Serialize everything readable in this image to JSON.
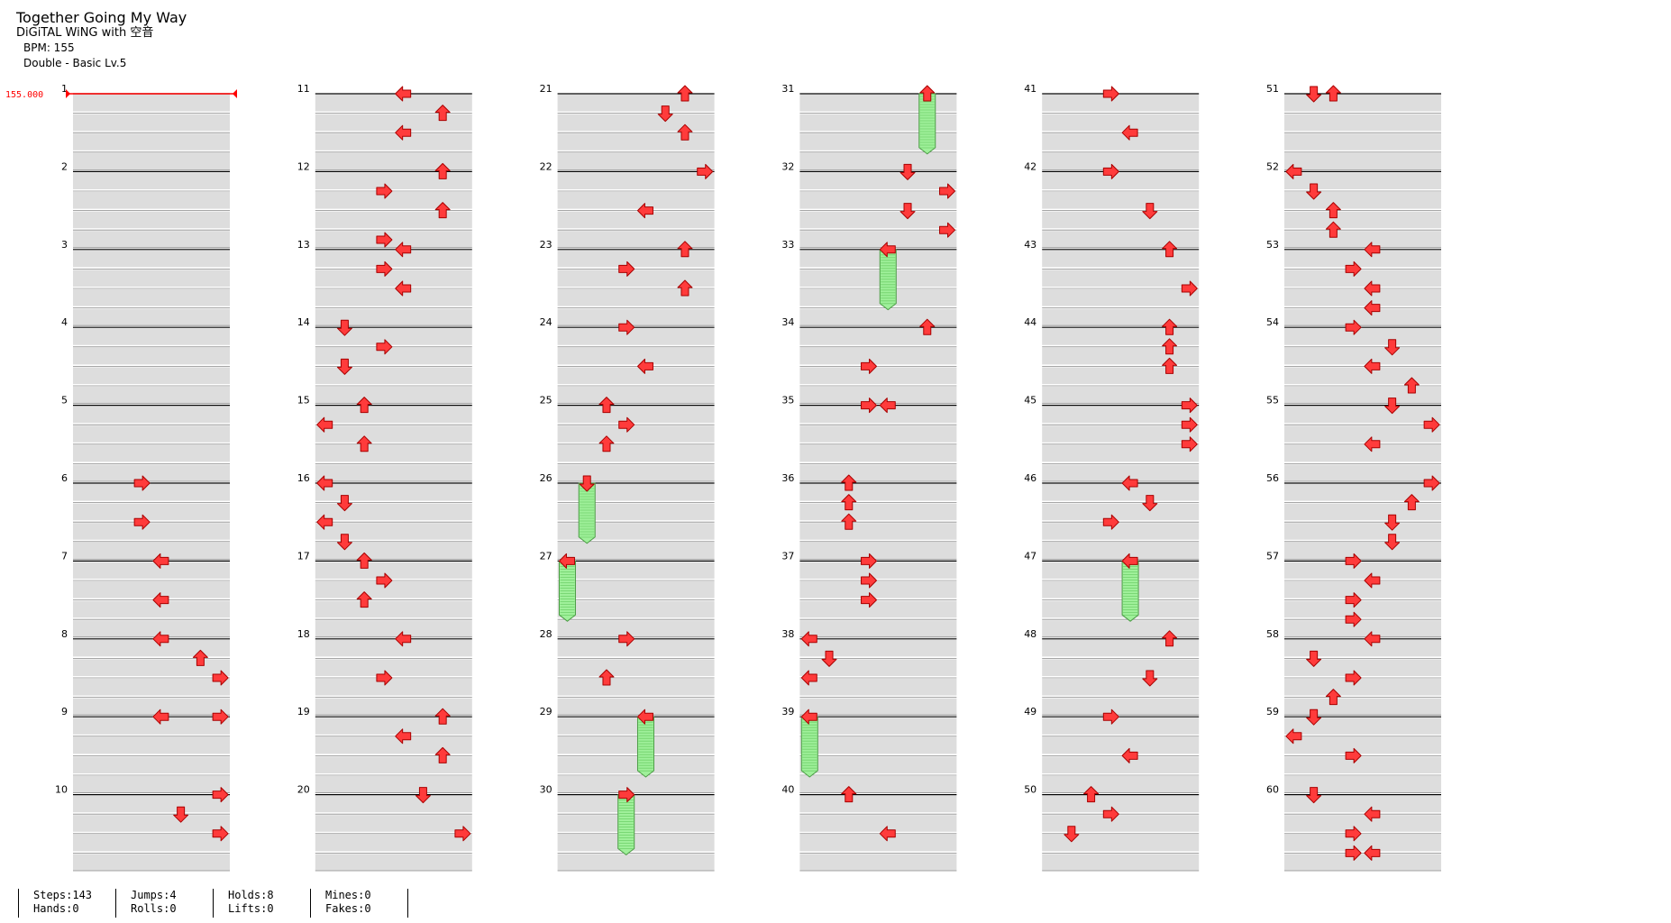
{
  "song": {
    "title": "Together Going My Way",
    "artist": "DiGiTAL WiNG with 空音",
    "bpm_label": "BPM: 155",
    "difficulty": "Double - Basic Lv.5"
  },
  "bpm_marker": "155.000",
  "colors": {
    "arrow_fill": "#ff3b3b",
    "arrow_stroke": "#a80000",
    "hold_fill": "#9ff09a",
    "hold_stroke": "#4c9c46",
    "band_fill": "#dddddd",
    "beat_line": "#000000",
    "bpm_color": "#ff0000"
  },
  "measure_count": 60,
  "measures": [
    {
      "n": "1",
      "notes": []
    },
    {
      "n": "2",
      "notes": []
    },
    {
      "n": "3",
      "notes": []
    },
    {
      "n": "4",
      "notes": []
    },
    {
      "n": "5",
      "notes": []
    },
    {
      "n": "6",
      "notes": [
        {
          "b": 0,
          "l": 3,
          "d": "R"
        },
        {
          "b": 2,
          "l": 3,
          "d": "R"
        }
      ]
    },
    {
      "n": "7",
      "notes": [
        {
          "b": 0,
          "l": 4,
          "d": "L"
        },
        {
          "b": 2,
          "l": 4,
          "d": "L"
        }
      ]
    },
    {
      "n": "8",
      "notes": [
        {
          "b": 0,
          "l": 4,
          "d": "L"
        },
        {
          "b": 1,
          "l": 6,
          "d": "U"
        },
        {
          "b": 2,
          "l": 7,
          "d": "R"
        }
      ]
    },
    {
      "n": "9",
      "notes": [
        {
          "b": 0,
          "l": 4,
          "d": "L"
        },
        {
          "b": 0,
          "l": 7,
          "d": "R"
        }
      ]
    },
    {
      "n": "10",
      "notes": [
        {
          "b": 0,
          "l": 7,
          "d": "R"
        },
        {
          "b": 1,
          "l": 5,
          "d": "D"
        },
        {
          "b": 2,
          "l": 7,
          "d": "R"
        }
      ]
    },
    {
      "n": "11",
      "notes": [
        {
          "b": 0,
          "l": 4,
          "d": "L"
        },
        {
          "b": 1,
          "l": 6,
          "d": "U"
        },
        {
          "b": 2,
          "l": 4,
          "d": "L"
        }
      ]
    },
    {
      "n": "12",
      "notes": [
        {
          "b": 0,
          "l": 6,
          "d": "U"
        },
        {
          "b": 1,
          "l": 3,
          "d": "R"
        },
        {
          "b": 2,
          "l": 6,
          "d": "U"
        }
      ]
    },
    {
      "n": "13",
      "notes": [
        {
          "b": -0.5,
          "l": 3,
          "d": "R"
        },
        {
          "b": 0,
          "l": 4,
          "d": "L"
        },
        {
          "b": 1,
          "l": 3,
          "d": "R"
        },
        {
          "b": 2,
          "l": 4,
          "d": "L"
        }
      ]
    },
    {
      "n": "14",
      "notes": [
        {
          "b": 0,
          "l": 1,
          "d": "D"
        },
        {
          "b": 1,
          "l": 3,
          "d": "R"
        },
        {
          "b": 2,
          "l": 1,
          "d": "D"
        }
      ]
    },
    {
      "n": "15",
      "notes": [
        {
          "b": 0,
          "l": 2,
          "d": "U"
        },
        {
          "b": 1,
          "l": 0,
          "d": "L"
        },
        {
          "b": 2,
          "l": 2,
          "d": "U"
        }
      ]
    },
    {
      "n": "16",
      "notes": [
        {
          "b": 0,
          "l": 0,
          "d": "L"
        },
        {
          "b": 1,
          "l": 1,
          "d": "D"
        },
        {
          "b": 2,
          "l": 0,
          "d": "L"
        },
        {
          "b": 3,
          "l": 1,
          "d": "D"
        }
      ]
    },
    {
      "n": "17",
      "notes": [
        {
          "b": 0,
          "l": 2,
          "d": "U"
        },
        {
          "b": 1,
          "l": 3,
          "d": "R"
        },
        {
          "b": 2,
          "l": 2,
          "d": "U"
        }
      ]
    },
    {
      "n": "18",
      "notes": [
        {
          "b": 0,
          "l": 4,
          "d": "L"
        },
        {
          "b": 2,
          "l": 3,
          "d": "R"
        }
      ]
    },
    {
      "n": "19",
      "notes": [
        {
          "b": 0,
          "l": 6,
          "d": "U"
        },
        {
          "b": 1,
          "l": 4,
          "d": "L"
        },
        {
          "b": 2,
          "l": 6,
          "d": "U"
        }
      ]
    },
    {
      "n": "20",
      "notes": [
        {
          "b": 0,
          "l": 5,
          "d": "D"
        },
        {
          "b": 2,
          "l": 7,
          "d": "R"
        }
      ]
    },
    {
      "n": "21",
      "notes": [
        {
          "b": 0,
          "l": 6,
          "d": "U"
        },
        {
          "b": 1,
          "l": 5,
          "d": "D"
        },
        {
          "b": 2,
          "l": 6,
          "d": "U"
        }
      ]
    },
    {
      "n": "22",
      "notes": [
        {
          "b": 0,
          "l": 7,
          "d": "R"
        },
        {
          "b": 2,
          "l": 4,
          "d": "L"
        }
      ]
    },
    {
      "n": "23",
      "notes": [
        {
          "b": 0,
          "l": 6,
          "d": "U"
        },
        {
          "b": 1,
          "l": 3,
          "d": "R"
        },
        {
          "b": 2,
          "l": 6,
          "d": "U"
        }
      ]
    },
    {
      "n": "24",
      "notes": [
        {
          "b": 0,
          "l": 3,
          "d": "R"
        },
        {
          "b": 2,
          "l": 4,
          "d": "L"
        }
      ]
    },
    {
      "n": "25",
      "notes": [
        {
          "b": 0,
          "l": 2,
          "d": "U"
        },
        {
          "b": 1,
          "l": 3,
          "d": "R"
        },
        {
          "b": 2,
          "l": 2,
          "d": "U"
        }
      ]
    },
    {
      "n": "26",
      "notes": [
        {
          "b": 0,
          "l": 1,
          "d": "D",
          "hold": 3
        }
      ]
    },
    {
      "n": "27",
      "notes": [
        {
          "b": 0,
          "l": 0,
          "d": "L",
          "hold": 3
        }
      ]
    },
    {
      "n": "28",
      "notes": [
        {
          "b": 0,
          "l": 3,
          "d": "R"
        },
        {
          "b": 2,
          "l": 2,
          "d": "U"
        }
      ]
    },
    {
      "n": "29",
      "notes": [
        {
          "b": 0,
          "l": 4,
          "d": "L",
          "hold": 3
        }
      ]
    },
    {
      "n": "30",
      "notes": [
        {
          "b": 0,
          "l": 3,
          "d": "R",
          "hold": 3
        }
      ]
    },
    {
      "n": "31",
      "notes": [
        {
          "b": 0,
          "l": 6,
          "d": "U",
          "hold": 3
        }
      ]
    },
    {
      "n": "32",
      "notes": [
        {
          "b": 0,
          "l": 5,
          "d": "D"
        },
        {
          "b": 1,
          "l": 7,
          "d": "R"
        },
        {
          "b": 2,
          "l": 5,
          "d": "D"
        },
        {
          "b": 3,
          "l": 7,
          "d": "R"
        }
      ]
    },
    {
      "n": "33",
      "notes": [
        {
          "b": 0,
          "l": 4,
          "d": "L",
          "hold": 3
        }
      ]
    },
    {
      "n": "34",
      "notes": [
        {
          "b": 0,
          "l": 6,
          "d": "U"
        },
        {
          "b": 2,
          "l": 3,
          "d": "R"
        }
      ]
    },
    {
      "n": "35",
      "notes": [
        {
          "b": 0,
          "l": 3,
          "d": "R"
        },
        {
          "b": 0,
          "l": 4,
          "d": "L"
        }
      ]
    },
    {
      "n": "36",
      "notes": [
        {
          "b": 0,
          "l": 2,
          "d": "U"
        },
        {
          "b": 1,
          "l": 2,
          "d": "U"
        },
        {
          "b": 2,
          "l": 2,
          "d": "U"
        }
      ]
    },
    {
      "n": "37",
      "notes": [
        {
          "b": 0,
          "l": 3,
          "d": "R"
        },
        {
          "b": 1,
          "l": 3,
          "d": "R"
        },
        {
          "b": 2,
          "l": 3,
          "d": "R"
        }
      ]
    },
    {
      "n": "38",
      "notes": [
        {
          "b": 0,
          "l": 0,
          "d": "L"
        },
        {
          "b": 1,
          "l": 1,
          "d": "D"
        },
        {
          "b": 2,
          "l": 0,
          "d": "L"
        }
      ]
    },
    {
      "n": "39",
      "notes": [
        {
          "b": 0,
          "l": 0,
          "d": "L",
          "hold": 3
        }
      ]
    },
    {
      "n": "40",
      "notes": [
        {
          "b": 0,
          "l": 2,
          "d": "U"
        },
        {
          "b": 2,
          "l": 4,
          "d": "L"
        }
      ]
    },
    {
      "n": "41",
      "notes": [
        {
          "b": 0,
          "l": 3,
          "d": "R"
        },
        {
          "b": 2,
          "l": 4,
          "d": "L"
        }
      ]
    },
    {
      "n": "42",
      "notes": [
        {
          "b": 0,
          "l": 3,
          "d": "R"
        },
        {
          "b": 2,
          "l": 5,
          "d": "D"
        }
      ]
    },
    {
      "n": "43",
      "notes": [
        {
          "b": 0,
          "l": 6,
          "d": "U"
        },
        {
          "b": 2,
          "l": 7,
          "d": "R"
        }
      ]
    },
    {
      "n": "44",
      "notes": [
        {
          "b": 0,
          "l": 6,
          "d": "U"
        },
        {
          "b": 1,
          "l": 6,
          "d": "U"
        },
        {
          "b": 2,
          "l": 6,
          "d": "U"
        }
      ]
    },
    {
      "n": "45",
      "notes": [
        {
          "b": 0,
          "l": 7,
          "d": "R"
        },
        {
          "b": 1,
          "l": 7,
          "d": "R"
        },
        {
          "b": 2,
          "l": 7,
          "d": "R"
        }
      ]
    },
    {
      "n": "46",
      "notes": [
        {
          "b": 0,
          "l": 4,
          "d": "L"
        },
        {
          "b": 1,
          "l": 5,
          "d": "D"
        },
        {
          "b": 2,
          "l": 3,
          "d": "R"
        }
      ]
    },
    {
      "n": "47",
      "notes": [
        {
          "b": 0,
          "l": 4,
          "d": "L",
          "hold": 3
        }
      ]
    },
    {
      "n": "48",
      "notes": [
        {
          "b": 0,
          "l": 6,
          "d": "U"
        },
        {
          "b": 2,
          "l": 5,
          "d": "D"
        }
      ]
    },
    {
      "n": "49",
      "notes": [
        {
          "b": 0,
          "l": 3,
          "d": "R"
        },
        {
          "b": 2,
          "l": 4,
          "d": "L"
        }
      ]
    },
    {
      "n": "50",
      "notes": [
        {
          "b": 0,
          "l": 2,
          "d": "U"
        },
        {
          "b": 1,
          "l": 3,
          "d": "R"
        },
        {
          "b": 2,
          "l": 1,
          "d": "D"
        }
      ]
    },
    {
      "n": "51",
      "notes": [
        {
          "b": 0,
          "l": 1,
          "d": "D"
        },
        {
          "b": 0,
          "l": 2,
          "d": "U"
        }
      ]
    },
    {
      "n": "52",
      "notes": [
        {
          "b": 0,
          "l": 0,
          "d": "L"
        },
        {
          "b": 1,
          "l": 1,
          "d": "D"
        },
        {
          "b": 2,
          "l": 2,
          "d": "U"
        },
        {
          "b": 3,
          "l": 2,
          "d": "U"
        }
      ]
    },
    {
      "n": "53",
      "notes": [
        {
          "b": 0,
          "l": 4,
          "d": "L"
        },
        {
          "b": 1,
          "l": 3,
          "d": "R"
        },
        {
          "b": 2,
          "l": 4,
          "d": "L"
        },
        {
          "b": 3,
          "l": 4,
          "d": "L"
        }
      ]
    },
    {
      "n": "54",
      "notes": [
        {
          "b": 0,
          "l": 3,
          "d": "R"
        },
        {
          "b": 1,
          "l": 5,
          "d": "D"
        },
        {
          "b": 2,
          "l": 4,
          "d": "L"
        },
        {
          "b": 3,
          "l": 6,
          "d": "U"
        }
      ]
    },
    {
      "n": "55",
      "notes": [
        {
          "b": 0,
          "l": 5,
          "d": "D"
        },
        {
          "b": 1,
          "l": 7,
          "d": "R"
        },
        {
          "b": 2,
          "l": 4,
          "d": "L"
        }
      ]
    },
    {
      "n": "56",
      "notes": [
        {
          "b": 0,
          "l": 7,
          "d": "R"
        },
        {
          "b": 1,
          "l": 6,
          "d": "U"
        },
        {
          "b": 2,
          "l": 5,
          "d": "D"
        },
        {
          "b": 3,
          "l": 5,
          "d": "D"
        }
      ]
    },
    {
      "n": "57",
      "notes": [
        {
          "b": 0,
          "l": 3,
          "d": "R"
        },
        {
          "b": 1,
          "l": 4,
          "d": "L"
        },
        {
          "b": 2,
          "l": 3,
          "d": "R"
        },
        {
          "b": 3,
          "l": 3,
          "d": "R"
        }
      ]
    },
    {
      "n": "58",
      "notes": [
        {
          "b": 0,
          "l": 4,
          "d": "L"
        },
        {
          "b": 1,
          "l": 1,
          "d": "D"
        },
        {
          "b": 2,
          "l": 3,
          "d": "R"
        },
        {
          "b": 3,
          "l": 2,
          "d": "U"
        }
      ]
    },
    {
      "n": "59",
      "notes": [
        {
          "b": 0,
          "l": 1,
          "d": "D"
        },
        {
          "b": 1,
          "l": 0,
          "d": "L"
        },
        {
          "b": 2,
          "l": 3,
          "d": "R"
        }
      ]
    },
    {
      "n": "60",
      "notes": [
        {
          "b": 0,
          "l": 1,
          "d": "D"
        },
        {
          "b": 1,
          "l": 4,
          "d": "L"
        },
        {
          "b": 2,
          "l": 3,
          "d": "R"
        },
        {
          "b": 3,
          "l": 3,
          "d": "R"
        },
        {
          "b": 3,
          "l": 4,
          "d": "L"
        }
      ]
    }
  ],
  "stats": {
    "steps": "Steps:143",
    "hands": "Hands:0",
    "jumps": "Jumps:4",
    "rolls": "Rolls:0",
    "holds": "Holds:8",
    "lifts": "Lifts:0",
    "mines": "Mines:0",
    "fakes": "Fakes:0"
  }
}
